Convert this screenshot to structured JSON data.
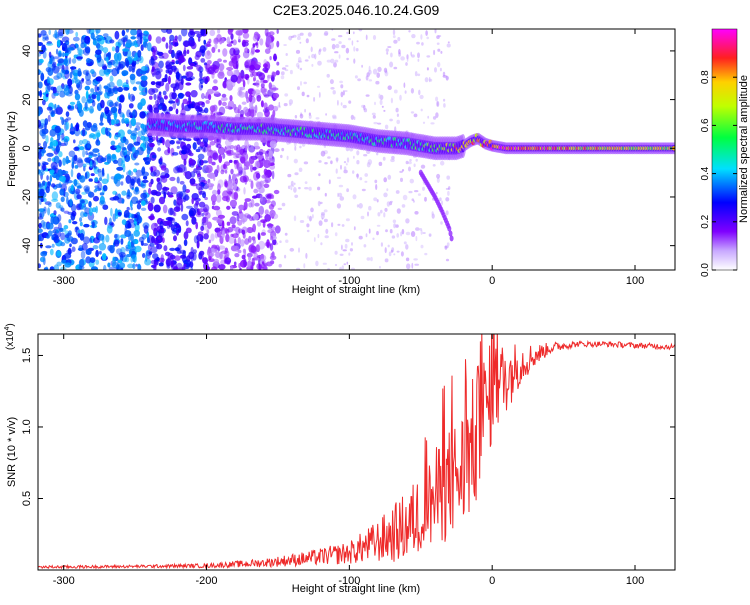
{
  "page_title": "C2E3.2025.046.10.24.G09",
  "chart_data": [
    {
      "id": "spectrogram",
      "type": "heatmap",
      "title": "",
      "xlabel": "Height of straight line (km)",
      "ylabel": "Frequency (Hz)",
      "xlim": [
        -318,
        128
      ],
      "ylim": [
        -50,
        49
      ],
      "x_ticks": [
        -300,
        -200,
        -100,
        0,
        100
      ],
      "y_ticks": [
        -40,
        -20,
        0,
        20,
        40
      ],
      "grid": false,
      "colorbar": {
        "label": "Normalized spectral amplitude",
        "range": [
          0,
          1
        ],
        "ticks": [
          0.0,
          0.2,
          0.4,
          0.6,
          0.8
        ],
        "tick_labels": [
          "0.0",
          "0.2",
          "0.4",
          "0.6",
          "0.8"
        ],
        "colormap": [
          "#ffffff",
          "#7f00ff",
          "#0000ff",
          "#00ffff",
          "#00ff00",
          "#ffff00",
          "#ff0000",
          "#ff00ff"
        ]
      },
      "ridge": {
        "x": [
          -240,
          -220,
          -200,
          -180,
          -160,
          -140,
          -120,
          -100,
          -80,
          -60,
          -40,
          -30,
          -25,
          -20,
          -15,
          -10,
          -5,
          0,
          10,
          20,
          40,
          60,
          80,
          100,
          128
        ],
        "y": [
          10,
          9,
          9,
          8,
          8,
          7,
          6,
          5,
          3,
          2,
          0,
          0,
          0,
          1,
          3,
          4,
          2,
          1,
          0,
          0,
          0,
          0,
          0,
          0,
          0
        ],
        "amplitude": [
          0.35,
          0.4,
          0.45,
          0.5,
          0.5,
          0.5,
          0.45,
          0.45,
          0.5,
          0.5,
          0.55,
          0.7,
          0.8,
          0.85,
          0.8,
          0.75,
          0.8,
          0.9,
          0.95,
          0.9,
          0.8,
          0.75,
          0.7,
          0.7,
          0.7
        ]
      },
      "branch": {
        "x": [
          -50,
          -45,
          -40,
          -35,
          -30,
          -28
        ],
        "y": [
          -10,
          -15,
          -20,
          -26,
          -33,
          -38
        ]
      }
    },
    {
      "id": "snr",
      "type": "line",
      "title": "",
      "xlabel": "Height of straight line (km)",
      "ylabel": "SNR (10 * v/v)",
      "y_multiplier": "(x10",
      "y_multiplier_exp": "4",
      "y_multiplier_close": ")",
      "xlim": [
        -318,
        128
      ],
      "ylim": [
        0,
        16500
      ],
      "x_ticks": [
        -300,
        -200,
        -100,
        0,
        100
      ],
      "y_ticks": [
        5000,
        10000,
        15000
      ],
      "y_tick_labels": [
        "0.5",
        "1.0",
        "1.5"
      ],
      "grid": false,
      "series": [
        {
          "color": "#ee2a2a",
          "x": [
            -318,
            -250,
            -200,
            -160,
            -130,
            -100,
            -80,
            -60,
            -40,
            -30,
            -20,
            -12,
            -5,
            0,
            5,
            10,
            20,
            30,
            40,
            50,
            60,
            80,
            100,
            128
          ],
          "y": [
            200,
            250,
            300,
            500,
            800,
            1200,
            2000,
            3000,
            5000,
            6000,
            7000,
            9000,
            11000,
            12500,
            13000,
            13500,
            14500,
            15000,
            15500,
            15700,
            15800,
            15800,
            15700,
            15600
          ],
          "noise": [
            100,
            100,
            150,
            300,
            500,
            800,
            1500,
            2500,
            3500,
            4000,
            4500,
            5000,
            4500,
            3500,
            3000,
            2500,
            1500,
            800,
            400,
            300,
            200,
            200,
            200,
            200
          ]
        }
      ]
    }
  ]
}
